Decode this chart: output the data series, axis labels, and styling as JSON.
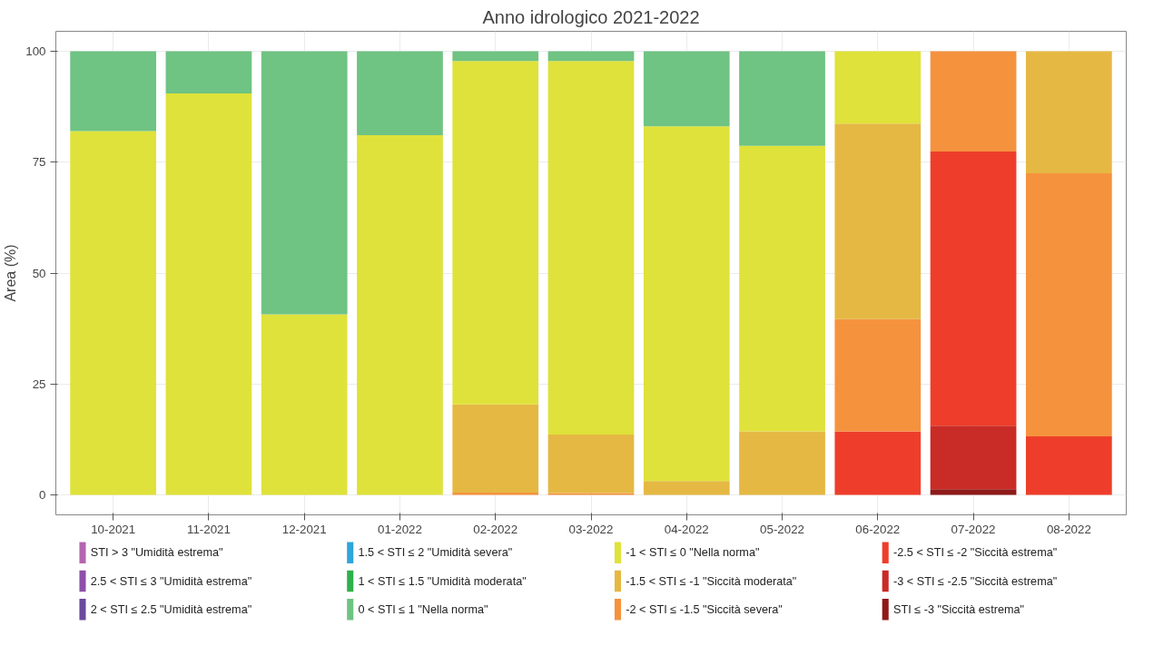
{
  "chart_data": {
    "type": "bar",
    "stacked": true,
    "title": "Anno idrologico 2021-2022",
    "ylabel": "Area (%)",
    "categories": [
      "10-2021",
      "11-2021",
      "12-2021",
      "01-2022",
      "02-2022",
      "03-2022",
      "04-2022",
      "05-2022",
      "06-2022",
      "07-2022",
      "08-2022"
    ],
    "ylim": [
      -4.5,
      104.5
    ],
    "yticks": [
      0,
      25,
      50,
      75,
      100
    ],
    "grid": true,
    "legend": "bottom",
    "series": [
      {
        "name": "STI ≤ -3 \"Siccità estrema\"",
        "color": "#8e1a1a",
        "values": [
          0,
          0,
          0,
          0,
          0,
          0,
          0,
          0,
          0,
          1.3,
          0
        ]
      },
      {
        "name": "-3 < STI ≤ -2.5 \"Siccità estrema\"",
        "color": "#c92b26",
        "values": [
          0,
          0,
          0,
          0,
          0,
          0,
          0,
          0,
          0,
          14.3,
          0
        ]
      },
      {
        "name": "-2.5 < STI ≤ -2 \"Siccità estrema\"",
        "color": "#ee3e2b",
        "values": [
          0,
          0,
          0,
          0,
          0,
          0,
          0,
          0,
          14.3,
          61.8,
          13.2
        ]
      },
      {
        "name": "-2 < STI ≤ -1.5 \"Siccità severa\"",
        "color": "#f5923e",
        "values": [
          0,
          0,
          0,
          0,
          0.5,
          0.4,
          0,
          0,
          25.3,
          22.6,
          59.3
        ]
      },
      {
        "name": "-1.5 < STI ≤ -1 \"Siccità moderata\"",
        "color": "#e5b843",
        "values": [
          0,
          0,
          0,
          0,
          19.9,
          13.2,
          3.1,
          14.3,
          44.1,
          0,
          27.5
        ]
      },
      {
        "name": "-1 < STI ≤ 0 \"Nella norma\"",
        "color": "#dfe23a",
        "values": [
          82,
          90.5,
          40.7,
          81.1,
          77.4,
          84.2,
          80,
          64.4,
          16.3,
          0,
          0
        ]
      },
      {
        "name": "0 < STI ≤ 1 \"Nella norma\"",
        "color": "#6fc383",
        "values": [
          18,
          9.5,
          59.3,
          18.9,
          2.2,
          2.2,
          16.9,
          21.3,
          0,
          0,
          0
        ]
      },
      {
        "name": "1 < STI ≤ 1.5 \"Umidità moderata\"",
        "color": "#2fb04a",
        "values": [
          0,
          0,
          0,
          0,
          0,
          0,
          0,
          0,
          0,
          0,
          0
        ]
      },
      {
        "name": "1.5 < STI ≤ 2 \"Umidità severa\"",
        "color": "#2ea5db",
        "values": [
          0,
          0,
          0,
          0,
          0,
          0,
          0,
          0,
          0,
          0,
          0
        ]
      },
      {
        "name": "2 < STI ≤ 2.5 \"Umidità estrema\"",
        "color": "#6a4a9e",
        "values": [
          0,
          0,
          0,
          0,
          0,
          0,
          0,
          0,
          0,
          0,
          0
        ]
      },
      {
        "name": "2.5 < STI ≤ 3 \"Umidità estrema\"",
        "color": "#8e4fa8",
        "values": [
          0,
          0,
          0,
          0,
          0,
          0,
          0,
          0,
          0,
          0,
          0
        ]
      },
      {
        "name": "STI > 3 \"Umidità estrema\"",
        "color": "#b565b0",
        "values": [
          0,
          0,
          0,
          0,
          0,
          0,
          0,
          0,
          0,
          0,
          0
        ]
      }
    ]
  }
}
